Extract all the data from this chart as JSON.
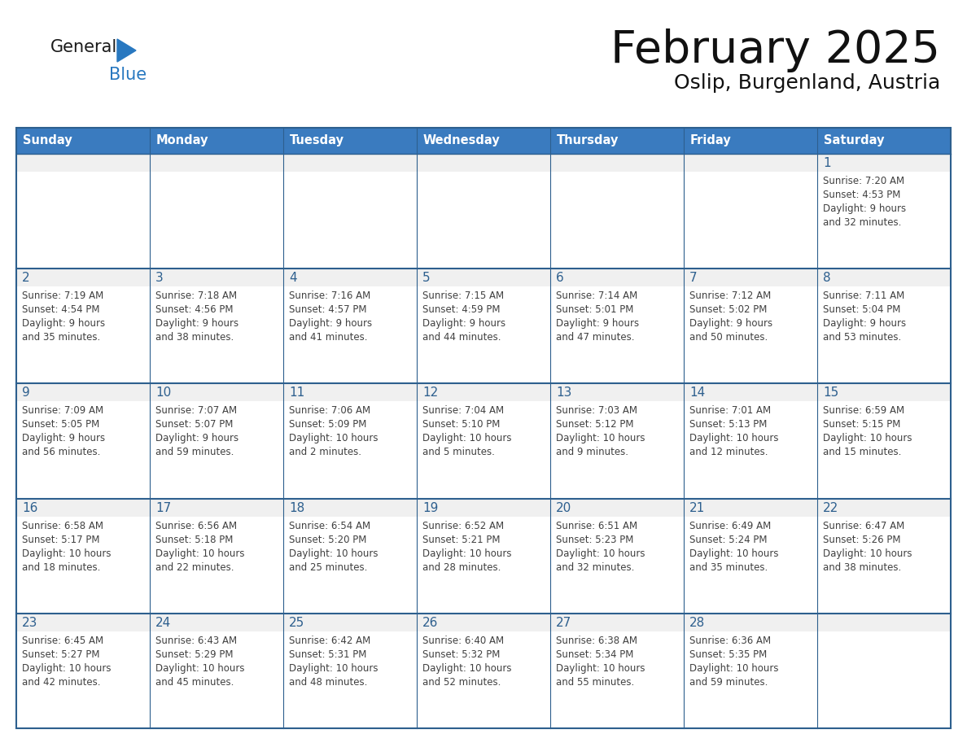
{
  "title": "February 2025",
  "subtitle": "Oslip, Burgenland, Austria",
  "days_of_week": [
    "Sunday",
    "Monday",
    "Tuesday",
    "Wednesday",
    "Thursday",
    "Friday",
    "Saturday"
  ],
  "header_bg": "#3a7bbf",
  "header_text": "#ffffff",
  "cell_bg": "#ffffff",
  "cell_top_strip_bg": "#f0f0f0",
  "border_color": "#2d5f8e",
  "day_number_color": "#2d5f8e",
  "text_color": "#404040",
  "logo_black": "#1a1a1a",
  "logo_blue": "#2878c0",
  "calendar": [
    [
      null,
      null,
      null,
      null,
      null,
      null,
      {
        "day": 1,
        "sunrise": "7:20 AM",
        "sunset": "4:53 PM",
        "daylight": "9 hours and 32 minutes."
      }
    ],
    [
      {
        "day": 2,
        "sunrise": "7:19 AM",
        "sunset": "4:54 PM",
        "daylight": "9 hours and 35 minutes."
      },
      {
        "day": 3,
        "sunrise": "7:18 AM",
        "sunset": "4:56 PM",
        "daylight": "9 hours and 38 minutes."
      },
      {
        "day": 4,
        "sunrise": "7:16 AM",
        "sunset": "4:57 PM",
        "daylight": "9 hours and 41 minutes."
      },
      {
        "day": 5,
        "sunrise": "7:15 AM",
        "sunset": "4:59 PM",
        "daylight": "9 hours and 44 minutes."
      },
      {
        "day": 6,
        "sunrise": "7:14 AM",
        "sunset": "5:01 PM",
        "daylight": "9 hours and 47 minutes."
      },
      {
        "day": 7,
        "sunrise": "7:12 AM",
        "sunset": "5:02 PM",
        "daylight": "9 hours and 50 minutes."
      },
      {
        "day": 8,
        "sunrise": "7:11 AM",
        "sunset": "5:04 PM",
        "daylight": "9 hours and 53 minutes."
      }
    ],
    [
      {
        "day": 9,
        "sunrise": "7:09 AM",
        "sunset": "5:05 PM",
        "daylight": "9 hours and 56 minutes."
      },
      {
        "day": 10,
        "sunrise": "7:07 AM",
        "sunset": "5:07 PM",
        "daylight": "9 hours and 59 minutes."
      },
      {
        "day": 11,
        "sunrise": "7:06 AM",
        "sunset": "5:09 PM",
        "daylight": "10 hours and 2 minutes."
      },
      {
        "day": 12,
        "sunrise": "7:04 AM",
        "sunset": "5:10 PM",
        "daylight": "10 hours and 5 minutes."
      },
      {
        "day": 13,
        "sunrise": "7:03 AM",
        "sunset": "5:12 PM",
        "daylight": "10 hours and 9 minutes."
      },
      {
        "day": 14,
        "sunrise": "7:01 AM",
        "sunset": "5:13 PM",
        "daylight": "10 hours and 12 minutes."
      },
      {
        "day": 15,
        "sunrise": "6:59 AM",
        "sunset": "5:15 PM",
        "daylight": "10 hours and 15 minutes."
      }
    ],
    [
      {
        "day": 16,
        "sunrise": "6:58 AM",
        "sunset": "5:17 PM",
        "daylight": "10 hours and 18 minutes."
      },
      {
        "day": 17,
        "sunrise": "6:56 AM",
        "sunset": "5:18 PM",
        "daylight": "10 hours and 22 minutes."
      },
      {
        "day": 18,
        "sunrise": "6:54 AM",
        "sunset": "5:20 PM",
        "daylight": "10 hours and 25 minutes."
      },
      {
        "day": 19,
        "sunrise": "6:52 AM",
        "sunset": "5:21 PM",
        "daylight": "10 hours and 28 minutes."
      },
      {
        "day": 20,
        "sunrise": "6:51 AM",
        "sunset": "5:23 PM",
        "daylight": "10 hours and 32 minutes."
      },
      {
        "day": 21,
        "sunrise": "6:49 AM",
        "sunset": "5:24 PM",
        "daylight": "10 hours and 35 minutes."
      },
      {
        "day": 22,
        "sunrise": "6:47 AM",
        "sunset": "5:26 PM",
        "daylight": "10 hours and 38 minutes."
      }
    ],
    [
      {
        "day": 23,
        "sunrise": "6:45 AM",
        "sunset": "5:27 PM",
        "daylight": "10 hours and 42 minutes."
      },
      {
        "day": 24,
        "sunrise": "6:43 AM",
        "sunset": "5:29 PM",
        "daylight": "10 hours and 45 minutes."
      },
      {
        "day": 25,
        "sunrise": "6:42 AM",
        "sunset": "5:31 PM",
        "daylight": "10 hours and 48 minutes."
      },
      {
        "day": 26,
        "sunrise": "6:40 AM",
        "sunset": "5:32 PM",
        "daylight": "10 hours and 52 minutes."
      },
      {
        "day": 27,
        "sunrise": "6:38 AM",
        "sunset": "5:34 PM",
        "daylight": "10 hours and 55 minutes."
      },
      {
        "day": 28,
        "sunrise": "6:36 AM",
        "sunset": "5:35 PM",
        "daylight": "10 hours and 59 minutes."
      },
      null
    ]
  ]
}
